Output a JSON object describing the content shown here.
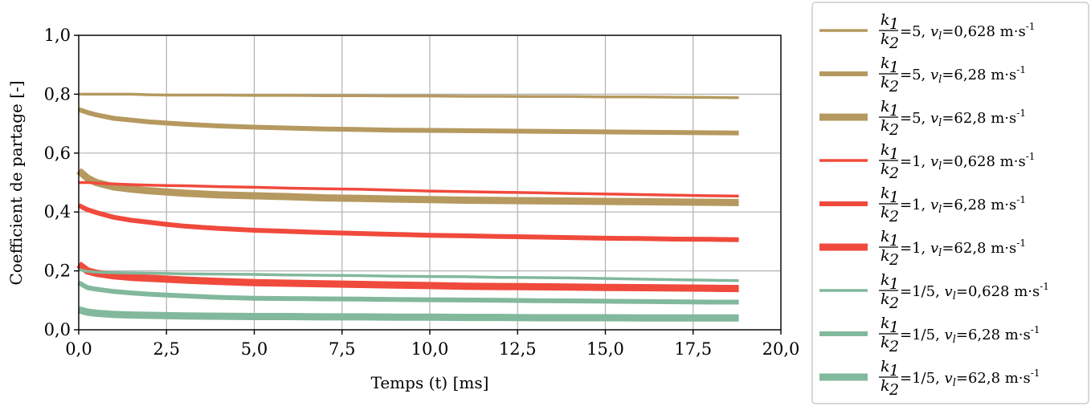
{
  "chart_data": {
    "type": "line",
    "title": "",
    "xlabel": "Temps (t) [ms]",
    "ylabel": "Coefficient de partage [-]",
    "xlim": [
      0,
      20
    ],
    "ylim": [
      0,
      1
    ],
    "xticks": [
      "0,0",
      "2,5",
      "5,0",
      "7,5",
      "10,0",
      "12,5",
      "15,0",
      "17,5",
      "20,0"
    ],
    "yticks": [
      "0,0",
      "0,2",
      "0,4",
      "0,6",
      "0,8",
      "1,0"
    ],
    "grid": true,
    "legend_position": "outside-right",
    "x": [
      0,
      0.25,
      0.5,
      1,
      1.5,
      2,
      2.5,
      3,
      4,
      5,
      6,
      7,
      8,
      9,
      10,
      11,
      12,
      13,
      14,
      15,
      16,
      17,
      18,
      18.8
    ],
    "series": [
      {
        "name": "k1/k2=5, vl=0,628 m·s-1",
        "k1": "k",
        "k1sub": "1",
        "k2": "k",
        "k2sub": "2",
        "ratio": "5",
        "v": "v",
        "vsub": "l",
        "speed": "=0,628  m·s",
        "exp": "-1",
        "color": "#b5995f",
        "width": 3.5,
        "values": [
          0.8,
          0.8,
          0.8,
          0.8,
          0.8,
          0.798,
          0.797,
          0.797,
          0.797,
          0.796,
          0.796,
          0.795,
          0.795,
          0.794,
          0.794,
          0.793,
          0.793,
          0.792,
          0.792,
          0.791,
          0.791,
          0.79,
          0.789,
          0.788
        ]
      },
      {
        "name": "k1/k2=5, vl=6,28 m·s-1",
        "k1": "k",
        "k1sub": "1",
        "k2": "k",
        "k2sub": "2",
        "ratio": "5",
        "v": "v",
        "vsub": "l",
        "speed": "=6,28 m·s",
        "exp": "-1",
        "color": "#b5995f",
        "width": 6,
        "values": [
          0.748,
          0.738,
          0.73,
          0.718,
          0.712,
          0.706,
          0.702,
          0.698,
          0.692,
          0.688,
          0.685,
          0.682,
          0.68,
          0.678,
          0.677,
          0.676,
          0.675,
          0.674,
          0.673,
          0.672,
          0.671,
          0.67,
          0.669,
          0.668
        ]
      },
      {
        "name": "k1/k2=5, vl=62,8 m·s-1",
        "k1": "k",
        "k1sub": "1",
        "k2": "k",
        "k2sub": "2",
        "ratio": "5",
        "v": "v",
        "vsub": "l",
        "speed": "=62,8 m·s",
        "exp": "-1",
        "color": "#b5995f",
        "width": 9,
        "values": [
          0.54,
          0.515,
          0.5,
          0.485,
          0.478,
          0.472,
          0.468,
          0.464,
          0.458,
          0.455,
          0.452,
          0.448,
          0.446,
          0.444,
          0.442,
          0.44,
          0.439,
          0.438,
          0.437,
          0.436,
          0.435,
          0.434,
          0.433,
          0.432
        ]
      },
      {
        "name": "k1/k2=1, vl=0,628 m·s-1",
        "k1": "k",
        "k1sub": "1",
        "k2": "k",
        "k2sub": "2",
        "ratio": "1",
        "v": "v",
        "vsub": "l",
        "speed": "=0,628  m·s",
        "exp": "-1",
        "color": "#f04a3c",
        "width": 3.5,
        "values": [
          0.5,
          0.5,
          0.498,
          0.495,
          0.493,
          0.491,
          0.49,
          0.489,
          0.486,
          0.484,
          0.481,
          0.479,
          0.477,
          0.474,
          0.471,
          0.469,
          0.467,
          0.465,
          0.463,
          0.461,
          0.459,
          0.457,
          0.455,
          0.454
        ]
      },
      {
        "name": "k1/k2=1, vl=6,28 m·s-1",
        "k1": "k",
        "k1sub": "1",
        "k2": "k",
        "k2sub": "2",
        "ratio": "1",
        "v": "v",
        "vsub": "l",
        "speed": "=6,28 m·s",
        "exp": "-1",
        "color": "#f04a3c",
        "width": 6,
        "values": [
          0.422,
          0.408,
          0.398,
          0.382,
          0.372,
          0.365,
          0.358,
          0.352,
          0.344,
          0.338,
          0.334,
          0.33,
          0.327,
          0.324,
          0.321,
          0.319,
          0.317,
          0.315,
          0.313,
          0.311,
          0.31,
          0.308,
          0.307,
          0.306
        ]
      },
      {
        "name": "k1/k2=1, vl=62,8 m·s-1",
        "k1": "k",
        "k1sub": "1",
        "k2": "k",
        "k2sub": "2",
        "ratio": "1",
        "v": "v",
        "vsub": "l",
        "speed": "=62,8 m·s",
        "exp": "-1",
        "color": "#f04a3c",
        "width": 9,
        "values": [
          0.222,
          0.2,
          0.192,
          0.183,
          0.178,
          0.175,
          0.172,
          0.169,
          0.164,
          0.16,
          0.158,
          0.156,
          0.154,
          0.152,
          0.15,
          0.148,
          0.147,
          0.146,
          0.145,
          0.144,
          0.143,
          0.142,
          0.141,
          0.14
        ]
      },
      {
        "name": "k1/k2=1/5, vl=0,628 m·s-1",
        "k1": "k",
        "k1sub": "1",
        "k2": "k",
        "k2sub": "2",
        "ratio": "1/5",
        "v": "v",
        "vsub": "l",
        "speed": "=0,628  m·s",
        "exp": "-1",
        "color": "#82b89c",
        "width": 3.5,
        "values": [
          0.205,
          0.198,
          0.196,
          0.194,
          0.193,
          0.192,
          0.191,
          0.19,
          0.189,
          0.188,
          0.186,
          0.185,
          0.184,
          0.182,
          0.181,
          0.18,
          0.178,
          0.177,
          0.176,
          0.174,
          0.172,
          0.17,
          0.168,
          0.167
        ]
      },
      {
        "name": "k1/k2=1/5, vl=6,28 m·s-1",
        "k1": "k",
        "k1sub": "1",
        "k2": "k",
        "k2sub": "2",
        "ratio": "1/5",
        "v": "v",
        "vsub": "l",
        "speed": "=6,28 m·s",
        "exp": "-1",
        "color": "#82b89c",
        "width": 6,
        "values": [
          0.16,
          0.143,
          0.138,
          0.13,
          0.125,
          0.121,
          0.118,
          0.115,
          0.11,
          0.107,
          0.106,
          0.105,
          0.104,
          0.103,
          0.102,
          0.101,
          0.1,
          0.099,
          0.098,
          0.097,
          0.096,
          0.095,
          0.094,
          0.094
        ]
      },
      {
        "name": "k1/k2=1/5, vl=62,8 m·s-1",
        "k1": "k",
        "k1sub": "1",
        "k2": "k",
        "k2sub": "2",
        "ratio": "1/5",
        "v": "v",
        "vsub": "l",
        "speed": "=62,8 m·s",
        "exp": "-1",
        "color": "#82b89c",
        "width": 9,
        "values": [
          0.068,
          0.06,
          0.056,
          0.052,
          0.05,
          0.049,
          0.048,
          0.047,
          0.046,
          0.045,
          0.045,
          0.044,
          0.044,
          0.043,
          0.043,
          0.042,
          0.042,
          0.041,
          0.041,
          0.041,
          0.04,
          0.04,
          0.04,
          0.04
        ]
      }
    ]
  }
}
